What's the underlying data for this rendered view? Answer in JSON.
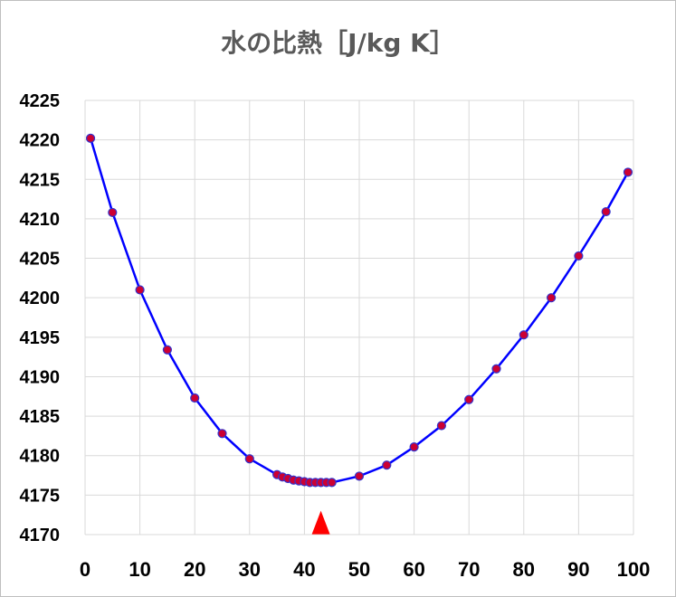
{
  "chart_data": {
    "type": "line",
    "title": "水の比熱［J/kg K］",
    "xlabel": "",
    "ylabel": "",
    "xlim": [
      0,
      100
    ],
    "ylim": [
      4170,
      4225
    ],
    "x_ticks": [
      0,
      10,
      20,
      30,
      40,
      50,
      60,
      70,
      80,
      90,
      100
    ],
    "y_ticks": [
      4170,
      4175,
      4180,
      4185,
      4190,
      4195,
      4200,
      4205,
      4210,
      4215,
      4220,
      4225
    ],
    "grid": true,
    "series": [
      {
        "name": "水の比熱",
        "line_color": "#0000ff",
        "marker_fill": "#cc0033",
        "marker_edge": "#3333cc",
        "x": [
          1,
          5,
          10,
          15,
          20,
          25,
          30,
          35,
          36,
          37,
          38,
          39,
          40,
          41,
          42,
          43,
          44,
          45,
          50,
          55,
          60,
          65,
          70,
          75,
          80,
          85,
          90,
          95,
          99
        ],
        "y": [
          4220.2,
          4210.8,
          4201.0,
          4193.4,
          4187.3,
          4182.8,
          4179.6,
          4177.6,
          4177.3,
          4177.1,
          4176.9,
          4176.8,
          4176.7,
          4176.6,
          4176.6,
          4176.6,
          4176.6,
          4176.6,
          4177.4,
          4178.8,
          4181.1,
          4183.8,
          4187.1,
          4191.0,
          4195.3,
          4200.0,
          4205.3,
          4210.9,
          4215.9
        ]
      }
    ],
    "annotations": [
      {
        "type": "triangle-marker",
        "x": 43,
        "y": 4171.3,
        "color": "#ff0000"
      }
    ]
  }
}
